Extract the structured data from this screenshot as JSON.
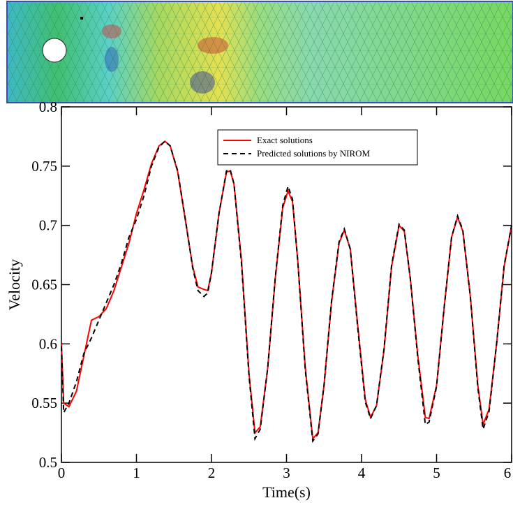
{
  "chart_data": {
    "type": "line",
    "x_label": "Time(s)",
    "y_label": "Velocity",
    "xlim": [
      0,
      6
    ],
    "ylim": [
      0.5,
      0.8
    ],
    "xticks": [
      0,
      1,
      2,
      3,
      4,
      5,
      6
    ],
    "yticks": [
      0.5,
      0.55,
      0.6,
      0.65,
      0.7,
      0.75,
      0.8
    ],
    "legend": "upper center",
    "x": [
      0,
      0.03,
      0.1,
      0.2,
      0.3,
      0.4,
      0.5,
      0.6,
      0.7,
      0.8,
      0.9,
      1.0,
      1.1,
      1.2,
      1.3,
      1.38,
      1.45,
      1.55,
      1.65,
      1.75,
      1.82,
      1.9,
      1.95,
      2.0,
      2.1,
      2.2,
      2.25,
      2.3,
      2.4,
      2.5,
      2.58,
      2.65,
      2.75,
      2.85,
      2.95,
      3.02,
      3.08,
      3.15,
      3.25,
      3.35,
      3.42,
      3.5,
      3.6,
      3.7,
      3.77,
      3.85,
      3.95,
      4.05,
      4.12,
      4.2,
      4.3,
      4.4,
      4.5,
      4.57,
      4.65,
      4.75,
      4.85,
      4.9,
      5.0,
      5.1,
      5.2,
      5.28,
      5.35,
      5.45,
      5.55,
      5.62,
      5.7,
      5.8,
      5.9,
      6.0
    ],
    "series": [
      {
        "name": "Exact solutions",
        "color": "#ff0000",
        "dash": false,
        "values": [
          0.6,
          0.55,
          0.547,
          0.56,
          0.59,
          0.62,
          0.623,
          0.63,
          0.645,
          0.665,
          0.685,
          0.71,
          0.73,
          0.752,
          0.767,
          0.771,
          0.767,
          0.745,
          0.705,
          0.665,
          0.648,
          0.646,
          0.645,
          0.66,
          0.71,
          0.745,
          0.746,
          0.735,
          0.67,
          0.575,
          0.525,
          0.53,
          0.58,
          0.655,
          0.715,
          0.729,
          0.72,
          0.67,
          0.58,
          0.52,
          0.525,
          0.565,
          0.635,
          0.685,
          0.696,
          0.68,
          0.615,
          0.553,
          0.538,
          0.548,
          0.595,
          0.665,
          0.7,
          0.695,
          0.655,
          0.59,
          0.538,
          0.537,
          0.565,
          0.63,
          0.69,
          0.707,
          0.695,
          0.64,
          0.565,
          0.532,
          0.545,
          0.6,
          0.665,
          0.7
        ]
      },
      {
        "name": "Predicted solutions by NIROM",
        "color": "#000000",
        "dash": true,
        "values": [
          0.598,
          0.542,
          0.55,
          0.568,
          0.592,
          0.605,
          0.62,
          0.635,
          0.65,
          0.668,
          0.69,
          0.705,
          0.725,
          0.75,
          0.766,
          0.771,
          0.767,
          0.746,
          0.706,
          0.664,
          0.645,
          0.64,
          0.643,
          0.66,
          0.71,
          0.746,
          0.747,
          0.735,
          0.668,
          0.573,
          0.52,
          0.528,
          0.58,
          0.656,
          0.717,
          0.733,
          0.722,
          0.67,
          0.578,
          0.518,
          0.524,
          0.565,
          0.636,
          0.686,
          0.697,
          0.68,
          0.613,
          0.551,
          0.537,
          0.548,
          0.596,
          0.666,
          0.701,
          0.696,
          0.655,
          0.588,
          0.532,
          0.534,
          0.564,
          0.63,
          0.69,
          0.708,
          0.696,
          0.64,
          0.563,
          0.528,
          0.543,
          0.6,
          0.666,
          0.7
        ]
      }
    ]
  }
}
